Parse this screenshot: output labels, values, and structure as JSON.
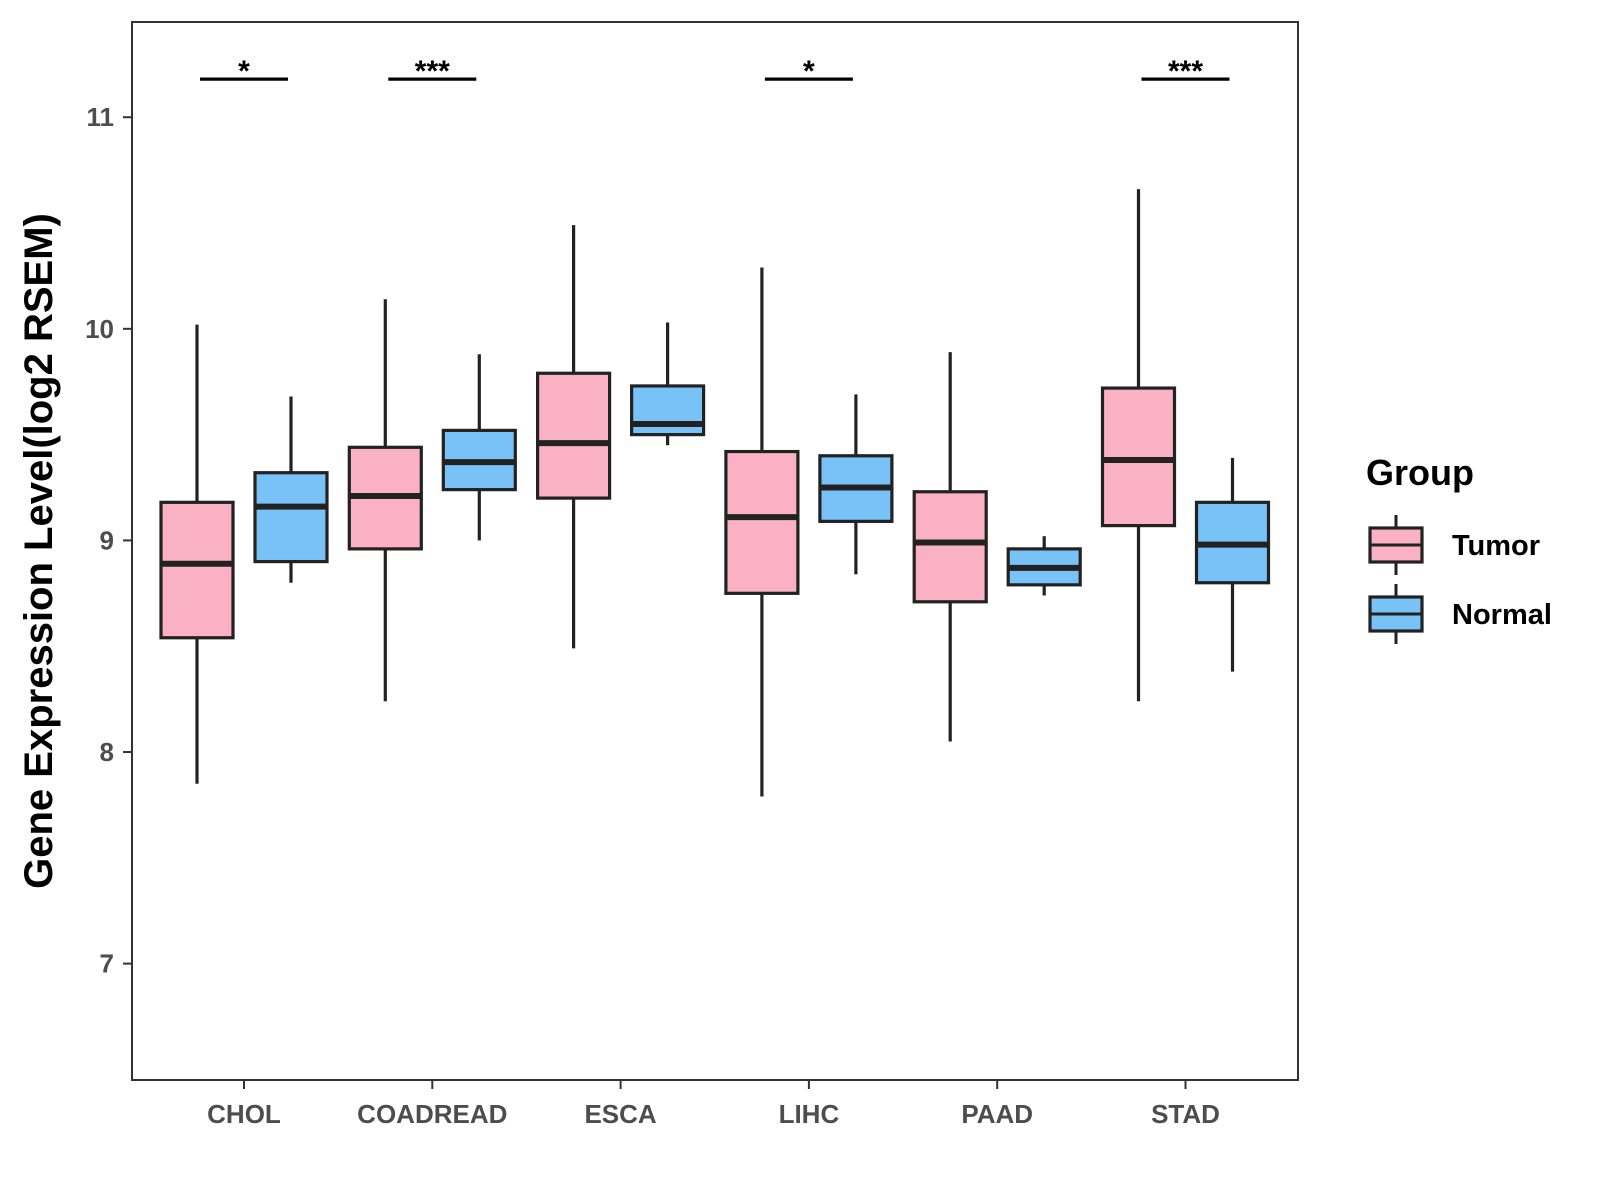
{
  "chart_data": {
    "type": "boxplot",
    "title": "",
    "xlabel": "",
    "ylabel": "Gene Expression Level(log2 RSEM)",
    "ylim": [
      6.45,
      11.45
    ],
    "yticks": [
      7,
      8,
      9,
      10,
      11
    ],
    "categories": [
      "CHOL",
      "COADREAD",
      "ESCA",
      "LIHC",
      "PAAD",
      "STAD"
    ],
    "legend": {
      "title": "Group",
      "position": "right",
      "entries": [
        "Tumor",
        "Normal"
      ]
    },
    "colors": {
      "Tumor": "#FBB1C4",
      "Normal": "#78C2F8",
      "outline": "#222222"
    },
    "series": [
      {
        "name": "Tumor",
        "boxes": [
          {
            "min": 7.85,
            "q1": 8.54,
            "median": 8.89,
            "q3": 9.18,
            "max": 10.02
          },
          {
            "min": 8.24,
            "q1": 8.96,
            "median": 9.21,
            "q3": 9.44,
            "max": 10.14
          },
          {
            "min": 8.49,
            "q1": 9.2,
            "median": 9.46,
            "q3": 9.79,
            "max": 10.49
          },
          {
            "min": 7.79,
            "q1": 8.75,
            "median": 9.11,
            "q3": 9.42,
            "max": 10.29
          },
          {
            "min": 8.05,
            "q1": 8.71,
            "median": 8.99,
            "q3": 9.23,
            "max": 9.89
          },
          {
            "min": 8.24,
            "q1": 9.07,
            "median": 9.38,
            "q3": 9.72,
            "max": 10.66
          }
        ]
      },
      {
        "name": "Normal",
        "boxes": [
          {
            "min": 8.8,
            "q1": 8.9,
            "median": 9.16,
            "q3": 9.32,
            "max": 9.68
          },
          {
            "min": 9.0,
            "q1": 9.24,
            "median": 9.37,
            "q3": 9.52,
            "max": 9.88
          },
          {
            "min": 9.45,
            "q1": 9.5,
            "median": 9.55,
            "q3": 9.73,
            "max": 10.03
          },
          {
            "min": 8.84,
            "q1": 9.09,
            "median": 9.25,
            "q3": 9.4,
            "max": 9.69
          },
          {
            "min": 8.74,
            "q1": 8.79,
            "median": 8.87,
            "q3": 8.96,
            "max": 9.02
          },
          {
            "min": 8.38,
            "q1": 8.8,
            "median": 8.98,
            "q3": 9.18,
            "max": 9.39
          }
        ]
      }
    ],
    "significance": [
      {
        "category": "CHOL",
        "label": "*",
        "y": 11.18
      },
      {
        "category": "COADREAD",
        "label": "***",
        "y": 11.18
      },
      {
        "category": "LIHC",
        "label": "*",
        "y": 11.18
      },
      {
        "category": "STAD",
        "label": "***",
        "y": 11.18
      }
    ]
  }
}
